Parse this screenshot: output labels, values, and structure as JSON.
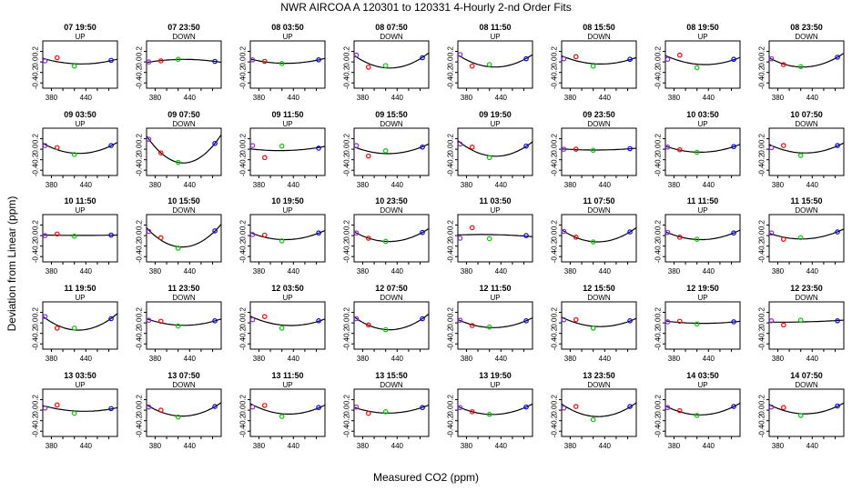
{
  "title": "NWR   AIRCOA A   120301 to 120331   4-Hourly 2-nd Order Fits",
  "xlabel": "Measured CO2 (ppm)",
  "ylabel": "Deviation from Linear (ppm)",
  "colors": {
    "standard_points": [
      "#8a2be2",
      "#ff0000",
      "#00cc00",
      "#0000ff"
    ],
    "curve": "#000000"
  },
  "chart_data": {
    "type": "scatter",
    "layout": {
      "rows": 5,
      "cols": 8
    },
    "ylim": [
      -0.5,
      0.4
    ],
    "y_ticks": [
      -0.4,
      -0.2,
      0.0,
      0.2
    ],
    "y_tick_labels": [
      "-0.4",
      "-0.2",
      "0.0",
      "0.2"
    ],
    "xlim_default": [
      365,
      495
    ],
    "x_ticks_default": [
      380,
      440
    ],
    "panels": [
      {
        "title": "07 19:50",
        "dir": "UP",
        "x": [
          369,
          390,
          420,
          484
        ],
        "y": [
          0.02,
          0.08,
          -0.08,
          0.03
        ]
      },
      {
        "title": "07 23:50",
        "dir": "DOWN",
        "x": [
          369,
          390,
          420,
          484
        ],
        "y": [
          0.0,
          0.02,
          0.05,
          0.01
        ]
      },
      {
        "title": "08 03:50",
        "dir": "UP",
        "x": [
          369,
          390,
          420,
          484
        ],
        "y": [
          0.04,
          0.01,
          -0.03,
          0.04
        ]
      },
      {
        "title": "08 07:50",
        "dir": "DOWN",
        "x": [
          369,
          390,
          420,
          484
        ],
        "y": [
          0.13,
          -0.1,
          -0.07,
          0.08
        ]
      },
      {
        "title": "08 11:50",
        "dir": "UP",
        "x": [
          369,
          390,
          420,
          484
        ],
        "y": [
          0.14,
          -0.08,
          -0.05,
          0.06
        ]
      },
      {
        "title": "08 15:50",
        "dir": "DOWN",
        "x": [
          369,
          390,
          420,
          484
        ],
        "y": [
          0.06,
          0.1,
          -0.08,
          0.05
        ]
      },
      {
        "title": "08 19:50",
        "dir": "UP",
        "x": [
          369,
          390,
          420,
          484
        ],
        "y": [
          0.05,
          0.13,
          -0.11,
          0.05
        ]
      },
      {
        "title": "08 23:50",
        "dir": "DOWN",
        "x": [
          369,
          390,
          420,
          484
        ],
        "y": [
          0.06,
          -0.05,
          -0.09,
          0.09
        ]
      },
      {
        "title": "09 03:50",
        "dir": "UP",
        "x": [
          369,
          390,
          420,
          484
        ],
        "y": [
          0.07,
          0.03,
          -0.1,
          0.07
        ]
      },
      {
        "title": "09 07:50",
        "dir": "DOWN",
        "x": [
          369,
          390,
          420,
          484
        ],
        "y": [
          0.19,
          -0.07,
          -0.25,
          0.11
        ]
      },
      {
        "title": "09 11:50",
        "dir": "UP",
        "x": [
          369,
          390,
          420,
          484
        ],
        "y": [
          0.07,
          -0.16,
          0.06,
          0.02
        ]
      },
      {
        "title": "09 15:50",
        "dir": "DOWN",
        "x": [
          369,
          390,
          420,
          484
        ],
        "y": [
          0.07,
          -0.13,
          -0.03,
          0.04
        ]
      },
      {
        "title": "09 19:50",
        "dir": "UP",
        "x": [
          369,
          390,
          420,
          484
        ],
        "y": [
          0.1,
          0.04,
          -0.16,
          0.06
        ]
      },
      {
        "title": "09 23:50",
        "dir": "DOWN",
        "x": [
          369,
          390,
          420,
          484
        ],
        "y": [
          0.0,
          0.0,
          -0.02,
          0.01
        ]
      },
      {
        "title": "10 03:50",
        "dir": "UP",
        "x": [
          369,
          390,
          420,
          484
        ],
        "y": [
          0.04,
          -0.01,
          -0.06,
          0.05
        ]
      },
      {
        "title": "10 07:50",
        "dir": "DOWN",
        "x": [
          369,
          390,
          420,
          484
        ],
        "y": [
          0.03,
          0.07,
          -0.12,
          0.07
        ]
      },
      {
        "title": "10 11:50",
        "dir": "UP",
        "x": [
          369,
          390,
          420,
          484
        ],
        "y": [
          0.0,
          0.03,
          -0.01,
          0.01
        ]
      },
      {
        "title": "10 15:50",
        "dir": "DOWN",
        "x": [
          369,
          390,
          420,
          484
        ],
        "y": [
          0.08,
          -0.04,
          -0.24,
          0.09
        ]
      },
      {
        "title": "10 19:50",
        "dir": "UP",
        "x": [
          369,
          390,
          420,
          484
        ],
        "y": [
          0.02,
          0.01,
          -0.1,
          0.05
        ]
      },
      {
        "title": "10 23:50",
        "dir": "DOWN",
        "x": [
          369,
          390,
          420,
          484
        ],
        "y": [
          0.05,
          -0.05,
          -0.11,
          0.06
        ]
      },
      {
        "title": "11 03:50",
        "dir": "UP",
        "x": [
          369,
          390,
          420,
          484
        ],
        "y": [
          -0.05,
          0.15,
          -0.06,
          0.0
        ]
      },
      {
        "title": "11 07:50",
        "dir": "DOWN",
        "x": [
          369,
          390,
          420,
          484
        ],
        "y": [
          0.08,
          -0.03,
          -0.12,
          0.07
        ]
      },
      {
        "title": "11 11:50",
        "dir": "UP",
        "x": [
          369,
          390,
          420,
          484
        ],
        "y": [
          0.06,
          -0.03,
          -0.07,
          0.05
        ]
      },
      {
        "title": "11 15:50",
        "dir": "DOWN",
        "x": [
          369,
          390,
          420,
          484
        ],
        "y": [
          0.05,
          -0.07,
          -0.04,
          0.07
        ]
      },
      {
        "title": "11 19:50",
        "dir": "UP",
        "x": [
          369,
          390,
          420,
          484
        ],
        "y": [
          0.12,
          -0.1,
          -0.1,
          0.08
        ]
      },
      {
        "title": "11 23:50",
        "dir": "DOWN",
        "x": [
          369,
          390,
          420,
          484
        ],
        "y": [
          0.05,
          0.03,
          -0.06,
          0.04
        ]
      },
      {
        "title": "12 03:50",
        "dir": "UP",
        "x": [
          369,
          390,
          420,
          484
        ],
        "y": [
          0.06,
          0.12,
          -0.1,
          0.04
        ]
      },
      {
        "title": "12 07:50",
        "dir": "DOWN",
        "x": [
          369,
          390,
          420,
          484
        ],
        "y": [
          0.08,
          -0.04,
          -0.13,
          0.08
        ]
      },
      {
        "title": "12 11:50",
        "dir": "UP",
        "x": [
          369,
          390,
          420,
          484
        ],
        "y": [
          0.05,
          -0.05,
          -0.08,
          0.04
        ]
      },
      {
        "title": "12 15:50",
        "dir": "DOWN",
        "x": [
          369,
          390,
          420,
          484
        ],
        "y": [
          0.06,
          0.06,
          -0.1,
          0.04
        ]
      },
      {
        "title": "12 19:50",
        "dir": "UP",
        "x": [
          369,
          390,
          420,
          484
        ],
        "y": [
          0.02,
          0.03,
          -0.02,
          0.02
        ]
      },
      {
        "title": "12 23:50",
        "dir": "DOWN",
        "x": [
          369,
          390,
          420,
          484
        ],
        "y": [
          0.04,
          -0.04,
          0.05,
          0.04
        ]
      },
      {
        "title": "13 03:50",
        "dir": "UP",
        "x": [
          369,
          390,
          420,
          484
        ],
        "y": [
          0.04,
          0.1,
          -0.06,
          0.03
        ]
      },
      {
        "title": "13 07:50",
        "dir": "DOWN",
        "x": [
          369,
          390,
          420,
          484
        ],
        "y": [
          0.06,
          0.0,
          -0.13,
          0.07
        ]
      },
      {
        "title": "13 11:50",
        "dir": "UP",
        "x": [
          369,
          390,
          420,
          484
        ],
        "y": [
          0.06,
          0.09,
          -0.12,
          0.05
        ]
      },
      {
        "title": "13 15:50",
        "dir": "DOWN",
        "x": [
          369,
          390,
          420,
          484
        ],
        "y": [
          0.06,
          -0.06,
          -0.03,
          0.05
        ]
      },
      {
        "title": "13 19:50",
        "dir": "UP",
        "x": [
          369,
          390,
          420,
          484
        ],
        "y": [
          0.05,
          -0.03,
          -0.08,
          0.06
        ]
      },
      {
        "title": "13 23:50",
        "dir": "DOWN",
        "x": [
          369,
          390,
          420,
          484
        ],
        "y": [
          0.04,
          0.07,
          -0.18,
          0.07
        ]
      },
      {
        "title": "14 03:50",
        "dir": "UP",
        "x": [
          369,
          390,
          420,
          484
        ],
        "y": [
          0.05,
          -0.01,
          -0.1,
          0.07
        ]
      },
      {
        "title": "14 07:50",
        "dir": "DOWN",
        "x": [
          369,
          390,
          420,
          484
        ],
        "y": [
          0.06,
          0.05,
          -0.1,
          0.08
        ]
      }
    ]
  }
}
